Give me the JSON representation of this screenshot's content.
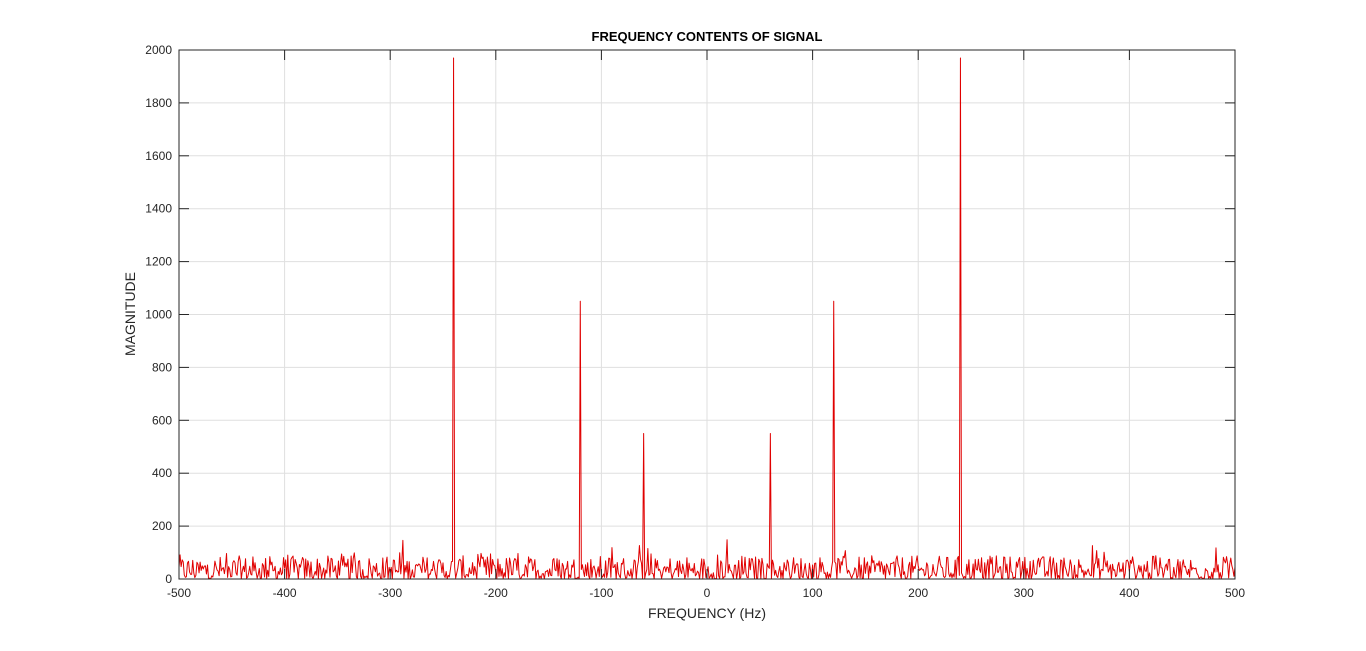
{
  "chart_data": {
    "type": "line",
    "title": "FREQUENCY CONTENTS OF SIGNAL",
    "xlabel": "FREQUENCY (Hz)",
    "ylabel": "MAGNITUDE",
    "xlim": [
      -500,
      500
    ],
    "ylim": [
      0,
      2000
    ],
    "xticks": [
      -500,
      -400,
      -300,
      -200,
      -100,
      0,
      100,
      200,
      300,
      400,
      500
    ],
    "yticks": [
      0,
      200,
      400,
      600,
      800,
      1000,
      1200,
      1400,
      1600,
      1800,
      2000
    ],
    "xtick_labels": [
      "-500",
      "-400",
      "-300",
      "-200",
      "-100",
      "0",
      "100",
      "200",
      "300",
      "400",
      "500"
    ],
    "ytick_labels": [
      "0",
      "200",
      "400",
      "600",
      "800",
      "1000",
      "1200",
      "1400",
      "1600",
      "1800",
      "2000"
    ],
    "grid": true,
    "series": [
      {
        "color": "#e00000",
        "noise_floor": {
          "typical_magnitude": [
            0,
            160
          ]
        },
        "peaks": [
          {
            "x": -240,
            "y": 1970
          },
          {
            "x": -120,
            "y": 1050
          },
          {
            "x": -60,
            "y": 550
          },
          {
            "x": 60,
            "y": 550
          },
          {
            "x": 120,
            "y": 1050
          },
          {
            "x": 240,
            "y": 1970
          }
        ]
      }
    ]
  }
}
